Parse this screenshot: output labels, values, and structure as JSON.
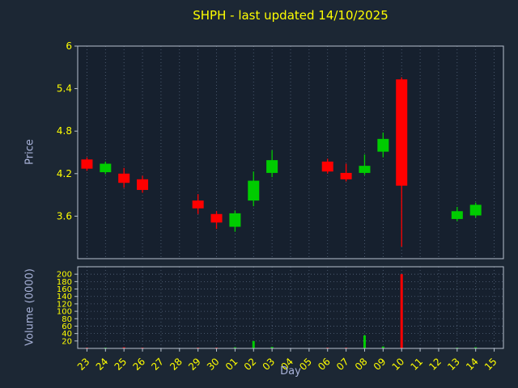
{
  "chart_data": {
    "type": "candlestick",
    "title": "SHPH - last updated 14/10/2025",
    "xlabel": "Day",
    "ylabel_price": "Price",
    "ylabel_volume": "Volume (0000)",
    "x_categories": [
      "23",
      "24",
      "25",
      "26",
      "27",
      "28",
      "29",
      "30",
      "01",
      "02",
      "03",
      "04",
      "05",
      "06",
      "07",
      "08",
      "09",
      "10",
      "11",
      "12",
      "13",
      "14",
      "15"
    ],
    "price_ylim": [
      3.0,
      6.0
    ],
    "price_yticks": [
      3.6,
      4.2,
      4.8,
      5.4,
      6
    ],
    "volume_ylim": [
      0,
      220
    ],
    "volume_yticks": [
      20,
      40,
      60,
      80,
      100,
      120,
      140,
      160,
      180,
      200
    ],
    "grid": "dotted",
    "x_label_rotation": 45,
    "candles": [
      {
        "day": "23",
        "open": 4.4,
        "high": 4.43,
        "low": 4.24,
        "close": 4.27,
        "volume": 2
      },
      {
        "day": "24",
        "open": 4.22,
        "high": 4.37,
        "low": 4.19,
        "close": 4.34,
        "volume": 2
      },
      {
        "day": "25",
        "open": 4.2,
        "high": 4.28,
        "low": 4.0,
        "close": 4.07,
        "volume": 3
      },
      {
        "day": "26",
        "open": 4.12,
        "high": 4.17,
        "low": 3.93,
        "close": 3.97,
        "volume": 2
      },
      {
        "day": "29",
        "open": 3.82,
        "high": 3.91,
        "low": 3.63,
        "close": 3.71,
        "volume": 2
      },
      {
        "day": "30",
        "open": 3.63,
        "high": 3.67,
        "low": 3.42,
        "close": 3.51,
        "volume": 2
      },
      {
        "day": "01",
        "open": 3.45,
        "high": 3.68,
        "low": 3.38,
        "close": 3.64,
        "volume": 3
      },
      {
        "day": "02",
        "open": 3.82,
        "high": 4.23,
        "low": 3.74,
        "close": 4.1,
        "volume": 20
      },
      {
        "day": "03",
        "open": 4.21,
        "high": 4.53,
        "low": 4.15,
        "close": 4.39,
        "volume": 4
      },
      {
        "day": "06",
        "open": 4.37,
        "high": 4.41,
        "low": 4.2,
        "close": 4.23,
        "volume": 2
      },
      {
        "day": "07",
        "open": 4.21,
        "high": 4.34,
        "low": 4.09,
        "close": 4.12,
        "volume": 2
      },
      {
        "day": "08",
        "open": 4.21,
        "high": 4.47,
        "low": 4.18,
        "close": 4.31,
        "volume": 35
      },
      {
        "day": "09",
        "open": 4.51,
        "high": 4.78,
        "low": 4.43,
        "close": 4.69,
        "volume": 5
      },
      {
        "day": "10",
        "open": 5.53,
        "high": 5.56,
        "low": 3.17,
        "close": 4.03,
        "volume": 200
      },
      {
        "day": "13",
        "open": 3.56,
        "high": 3.73,
        "low": 3.53,
        "close": 3.67,
        "volume": 2
      },
      {
        "day": "14",
        "open": 3.61,
        "high": 3.79,
        "low": 3.58,
        "close": 3.76,
        "volume": 3
      }
    ],
    "colors": {
      "up": "#00cc00",
      "down": "#ff0000",
      "title": "#ffff00",
      "tick_labels": "#ffff00",
      "axis_labels": "#a8b2d8",
      "figure_bg": "#1c2734",
      "plot_bg": "#16202e",
      "grid": "#55657c",
      "spine": "#b8c2cf"
    }
  }
}
